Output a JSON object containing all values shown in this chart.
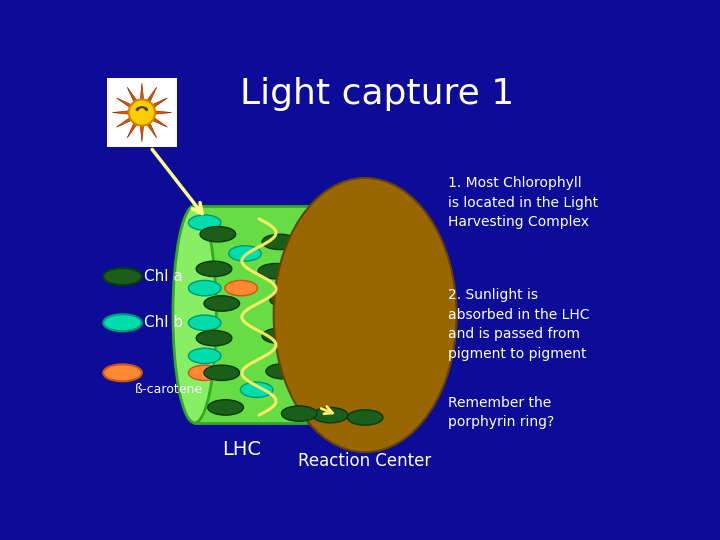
{
  "background_color": "#0c0c99",
  "title": "Light capture 1",
  "title_color": "white",
  "title_fontsize": 26,
  "annotation1": "1. Most Chlorophyll\nis located in the Light\nHarvesting Complex",
  "annotation2": "2. Sunlight is\nabsorbed in the LHC\nand is passed from\npigment to pigment",
  "annotation3": "Remember the\nporphyrin ring?",
  "annotation_color": "white",
  "annotation_fontsize": 10,
  "lhc_cylinder_color": "#66dd44",
  "lhc_cylinder_edge_color": "#33aa22",
  "lhc_left_ellipse_color": "#88ee66",
  "reaction_center_color": "#996600",
  "reaction_center_edge": "#664400",
  "chl_a_color": "#1a5e1a",
  "chl_a_edge": "#0a3a0a",
  "chl_b_color": "#00ddaa",
  "chl_b_edge": "#009977",
  "carotene_color": "#ff8833",
  "carotene_edge": "#cc5511",
  "legend_label_a": "Chl a",
  "legend_label_b": "Chl b",
  "legend_label_c": "ß-carotene",
  "lhc_label": "LHC",
  "rc_label": "Reaction Center",
  "label_color": "white",
  "label_fontsize": 12,
  "sun_box_color": "white",
  "sun_body_color": "#ff8800",
  "sun_ray_color": "#cc5500",
  "sun_face_color": "#ffee00",
  "arrow_color": "#ffff88"
}
